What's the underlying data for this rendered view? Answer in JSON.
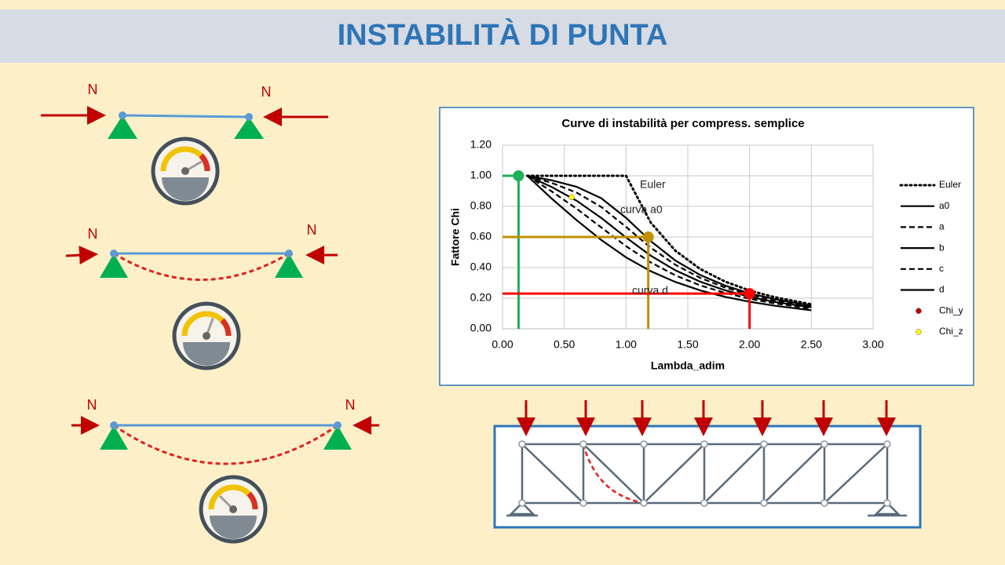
{
  "header": {
    "title": "INSTABILITÀ DI PUNTA"
  },
  "diagrams": [
    {
      "labels": [
        "N",
        "N"
      ]
    },
    {
      "labels": [
        "N",
        "N"
      ]
    },
    {
      "labels": [
        "N",
        "N"
      ]
    }
  ],
  "chart_data": {
    "type": "line",
    "title": "Curve di instabilità per compress. semplice",
    "x_label": "Lambda_adim",
    "y_label": "Fattore Chi",
    "xlim": [
      0,
      3
    ],
    "ylim": [
      0,
      1.2
    ],
    "xticks": [
      {
        "value": 0,
        "label": "0.00"
      },
      {
        "value": 0.5,
        "label": "0.50"
      },
      {
        "value": 1,
        "label": "1.00"
      },
      {
        "value": 1.5,
        "label": "1.50"
      },
      {
        "value": 2,
        "label": "2.00"
      },
      {
        "value": 2.5,
        "label": "2.50"
      },
      {
        "value": 3,
        "label": "3.00"
      }
    ],
    "yticks": [
      {
        "value": 0,
        "label": "0.00"
      },
      {
        "value": 0.2,
        "label": "0.20"
      },
      {
        "value": 0.4,
        "label": "0.40"
      },
      {
        "value": 0.6,
        "label": "0.60"
      },
      {
        "value": 0.8,
        "label": "0.80"
      },
      {
        "value": 1,
        "label": "1.00"
      },
      {
        "value": 1.2,
        "label": "1.20"
      }
    ],
    "grid": true,
    "x": [
      0.2,
      0.4,
      0.6,
      0.8,
      1.0,
      1.2,
      1.4,
      1.6,
      1.8,
      2.0,
      2.2,
      2.5
    ],
    "series": [
      {
        "name": "Euler",
        "color": "#000000",
        "style": "dotted",
        "values": [
          1,
          1,
          1,
          1,
          1,
          0.694,
          0.51,
          0.391,
          0.309,
          0.25,
          0.207,
          0.16
        ]
      },
      {
        "name": "a0",
        "color": "#000000",
        "style": "solid",
        "values": [
          1,
          0.97,
          0.928,
          0.853,
          0.725,
          0.573,
          0.446,
          0.352,
          0.283,
          0.232,
          0.194,
          0.151
        ]
      },
      {
        "name": "a",
        "color": "#000000",
        "style": "dashed",
        "values": [
          1,
          0.953,
          0.89,
          0.796,
          0.666,
          0.53,
          0.418,
          0.333,
          0.27,
          0.223,
          0.187,
          0.147
        ]
      },
      {
        "name": "b",
        "color": "#000000",
        "style": "solid",
        "values": [
          1,
          0.926,
          0.837,
          0.724,
          0.597,
          0.478,
          0.382,
          0.308,
          0.252,
          0.209,
          0.176,
          0.14
        ]
      },
      {
        "name": "c",
        "color": "#000000",
        "style": "dashed",
        "values": [
          1,
          0.897,
          0.785,
          0.662,
          0.54,
          0.434,
          0.349,
          0.284,
          0.235,
          0.196,
          0.166,
          0.132
        ]
      },
      {
        "name": "d",
        "color": "#000000",
        "style": "solid",
        "values": [
          1,
          0.85,
          0.71,
          0.58,
          0.467,
          0.376,
          0.306,
          0.251,
          0.209,
          0.177,
          0.151,
          0.121
        ]
      },
      {
        "name": "Chi_y",
        "color": "#c00000",
        "style": "marker",
        "x": [
          2.0
        ],
        "values": [
          0.23
        ]
      },
      {
        "name": "Chi_z",
        "color": "#ffff00",
        "style": "marker",
        "x": [
          0.56
        ],
        "values": [
          0.86
        ]
      }
    ],
    "highlights": [
      {
        "x": 0.13,
        "y": 1.0,
        "color": "#1fb05a"
      },
      {
        "x": 1.18,
        "y": 0.6,
        "color": "#bf9000"
      },
      {
        "x": 2.0,
        "y": 0.23,
        "color": "#ff0000"
      }
    ],
    "annotations": [
      "Euler",
      "curva a0",
      "curva d"
    ]
  }
}
